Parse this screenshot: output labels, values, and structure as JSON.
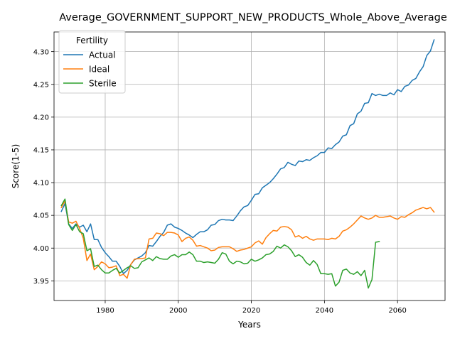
{
  "chart_data": {
    "type": "line",
    "title": "Average_GOVERNMENT_SUPPORT_NEW_PRODUCTS_Whole_Above_Average",
    "xlabel": "Years",
    "ylabel": "Score(1-5)",
    "xlim": [
      1966,
      2073
    ],
    "ylim": [
      3.92,
      4.33
    ],
    "xticks": [
      1980,
      2000,
      2020,
      2040,
      2060
    ],
    "yticks": [
      3.95,
      4.0,
      4.05,
      4.1,
      4.15,
      4.2,
      4.25,
      4.3
    ],
    "ytick_labels": [
      "3.95",
      "4.00",
      "4.05",
      "4.10",
      "4.15",
      "4.20",
      "4.25",
      "4.30"
    ],
    "grid": true,
    "legend": {
      "title": "Fertility",
      "placement": "top-left"
    },
    "series": [
      {
        "name": "Actual",
        "color": "#1f77b4",
        "x": [
          1968,
          1969,
          1970,
          1971,
          1972,
          1973,
          1974,
          1975,
          1976,
          1977,
          1978,
          1979,
          1980,
          1981,
          1982,
          1983,
          1984,
          1985,
          1986,
          1987,
          1988,
          1989,
          1990,
          1991,
          1992,
          1993,
          1994,
          1995,
          1996,
          1997,
          1998,
          1999,
          2000,
          2001,
          2002,
          2003,
          2004,
          2005,
          2006,
          2007,
          2008,
          2009,
          2010,
          2011,
          2012,
          2013,
          2014,
          2015,
          2016,
          2017,
          2018,
          2019,
          2020,
          2021,
          2022,
          2023,
          2024,
          2025,
          2026,
          2027,
          2028,
          2029,
          2030,
          2031,
          2032,
          2033,
          2034,
          2035,
          2036,
          2037,
          2038,
          2039,
          2040,
          2041,
          2042,
          2043,
          2044,
          2045,
          2046,
          2047,
          2048,
          2049,
          2050,
          2051,
          2052,
          2053,
          2054,
          2055,
          2056,
          2057,
          2058,
          2059,
          2060,
          2061,
          2062,
          2063,
          2064,
          2065,
          2066,
          2067,
          2068,
          2069,
          2070
        ],
        "y": [
          4.056,
          4.068,
          4.037,
          4.03,
          4.037,
          4.032,
          4.035,
          4.025,
          4.037,
          4.013,
          4.013,
          4.001,
          3.993,
          3.987,
          3.98,
          3.98,
          3.972,
          3.961,
          3.966,
          3.975,
          3.982,
          3.985,
          3.988,
          3.993,
          4.004,
          4.003,
          4.01,
          4.018,
          4.024,
          4.035,
          4.037,
          4.032,
          4.03,
          4.027,
          4.023,
          4.02,
          4.016,
          4.021,
          4.025,
          4.025,
          4.028,
          4.035,
          4.036,
          4.042,
          4.044,
          4.043,
          4.043,
          4.042,
          4.049,
          4.057,
          4.063,
          4.065,
          4.073,
          4.082,
          4.083,
          4.092,
          4.096,
          4.1,
          4.106,
          4.113,
          4.121,
          4.123,
          4.131,
          4.128,
          4.126,
          4.133,
          4.132,
          4.135,
          4.134,
          4.138,
          4.141,
          4.146,
          4.146,
          4.153,
          4.152,
          4.158,
          4.162,
          4.171,
          4.173,
          4.187,
          4.19,
          4.205,
          4.209,
          4.221,
          4.222,
          4.236,
          4.233,
          4.235,
          4.233,
          4.233,
          4.237,
          4.234,
          4.242,
          4.239,
          4.247,
          4.249,
          4.256,
          4.259,
          4.269,
          4.277,
          4.294,
          4.301,
          4.318
        ]
      },
      {
        "name": "Ideal",
        "color": "#ff7f0e",
        "x": [
          1968,
          1969,
          1970,
          1971,
          1972,
          1973,
          1974,
          1975,
          1976,
          1977,
          1978,
          1979,
          1980,
          1981,
          1982,
          1983,
          1984,
          1985,
          1986,
          1987,
          1988,
          1989,
          1990,
          1991,
          1992,
          1993,
          1994,
          1995,
          1996,
          1997,
          1998,
          1999,
          2000,
          2001,
          2002,
          2003,
          2004,
          2005,
          2006,
          2007,
          2008,
          2009,
          2010,
          2011,
          2012,
          2013,
          2014,
          2015,
          2016,
          2017,
          2018,
          2019,
          2020,
          2021,
          2022,
          2023,
          2024,
          2025,
          2026,
          2027,
          2028,
          2029,
          2030,
          2031,
          2032,
          2033,
          2034,
          2035,
          2036,
          2037,
          2038,
          2039,
          2040,
          2041,
          2042,
          2043,
          2044,
          2045,
          2046,
          2047,
          2048,
          2049,
          2050,
          2051,
          2052,
          2053,
          2054,
          2055,
          2056,
          2057,
          2058,
          2059,
          2060,
          2061,
          2062,
          2063,
          2064,
          2065,
          2066,
          2067,
          2068,
          2069,
          2070
        ],
        "y": [
          4.062,
          4.072,
          4.04,
          4.038,
          4.041,
          4.03,
          4.015,
          3.981,
          3.991,
          3.967,
          3.972,
          3.979,
          3.976,
          3.97,
          3.971,
          3.973,
          3.958,
          3.96,
          3.954,
          3.975,
          3.983,
          3.984,
          3.984,
          3.985,
          4.014,
          4.015,
          4.023,
          4.022,
          4.019,
          4.024,
          4.024,
          4.023,
          4.02,
          4.01,
          4.015,
          4.017,
          4.012,
          4.003,
          4.004,
          4.002,
          4.0,
          3.996,
          3.997,
          4.001,
          4.002,
          4.002,
          4.002,
          3.999,
          3.995,
          3.997,
          3.998,
          4.0,
          4.002,
          4.008,
          4.011,
          4.006,
          4.016,
          4.022,
          4.027,
          4.026,
          4.032,
          4.033,
          4.032,
          4.028,
          4.017,
          4.019,
          4.015,
          4.018,
          4.014,
          4.012,
          4.014,
          4.014,
          4.014,
          4.013,
          4.015,
          4.014,
          4.018,
          4.026,
          4.028,
          4.032,
          4.037,
          4.043,
          4.049,
          4.046,
          4.044,
          4.046,
          4.05,
          4.047,
          4.047,
          4.048,
          4.049,
          4.046,
          4.044,
          4.048,
          4.047,
          4.051,
          4.054,
          4.058,
          4.06,
          4.062,
          4.06,
          4.062,
          4.055
        ]
      },
      {
        "name": "Sterile",
        "color": "#2ca02c",
        "x": [
          1968,
          1969,
          1970,
          1971,
          1972,
          1973,
          1974,
          1975,
          1976,
          1977,
          1978,
          1979,
          1980,
          1981,
          1982,
          1983,
          1984,
          1985,
          1986,
          1987,
          1988,
          1989,
          1990,
          1991,
          1992,
          1993,
          1994,
          1995,
          1996,
          1997,
          1998,
          1999,
          2000,
          2001,
          2002,
          2003,
          2004,
          2005,
          2006,
          2007,
          2008,
          2009,
          2010,
          2011,
          2012,
          2013,
          2014,
          2015,
          2016,
          2017,
          2018,
          2019,
          2020,
          2021,
          2022,
          2023,
          2024,
          2025,
          2026,
          2027,
          2028,
          2029,
          2030,
          2031,
          2032,
          2033,
          2034,
          2035,
          2036,
          2037,
          2038,
          2039,
          2040,
          2041,
          2042,
          2043,
          2044,
          2045,
          2046,
          2047,
          2048,
          2049,
          2050,
          2051,
          2052,
          2053,
          2054,
          2055
        ],
        "y": [
          4.065,
          4.075,
          4.036,
          4.027,
          4.036,
          4.025,
          4.022,
          3.996,
          3.999,
          3.972,
          3.974,
          3.967,
          3.962,
          3.962,
          3.966,
          3.969,
          3.962,
          3.966,
          3.97,
          3.973,
          3.969,
          3.97,
          3.979,
          3.982,
          3.985,
          3.981,
          3.987,
          3.984,
          3.983,
          3.983,
          3.988,
          3.99,
          3.986,
          3.99,
          3.99,
          3.994,
          3.99,
          3.98,
          3.98,
          3.978,
          3.979,
          3.978,
          3.977,
          3.983,
          3.993,
          3.991,
          3.98,
          3.976,
          3.98,
          3.979,
          3.976,
          3.977,
          3.983,
          3.98,
          3.982,
          3.985,
          3.99,
          3.991,
          3.995,
          4.003,
          4.0,
          4.005,
          4.002,
          3.996,
          3.987,
          3.99,
          3.986,
          3.978,
          3.974,
          3.981,
          3.975,
          3.961,
          3.961,
          3.96,
          3.961,
          3.942,
          3.948,
          3.966,
          3.968,
          3.962,
          3.96,
          3.964,
          3.958,
          3.966,
          3.939,
          3.952,
          4.009,
          4.01
        ]
      }
    ]
  }
}
